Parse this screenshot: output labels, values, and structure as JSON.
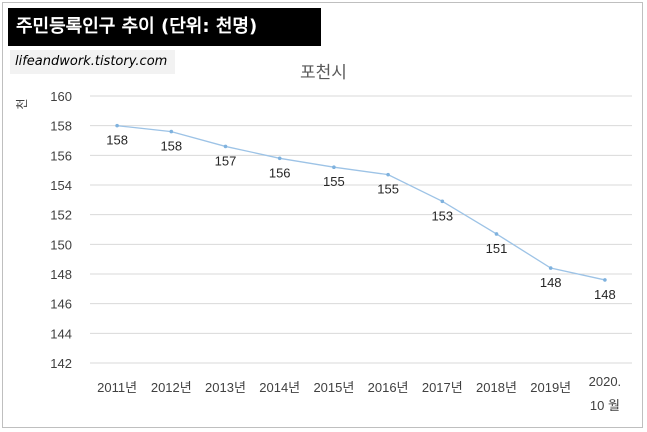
{
  "header": {
    "banner_title": "주민등록인구 추이 (단위: 천명)",
    "watermark": "lifeandwork.tistory.com"
  },
  "chart_data": {
    "type": "line",
    "title": "포천시",
    "ylabel": "천",
    "xlabel": "",
    "ylim": [
      142,
      160
    ],
    "yticks": [
      142,
      144,
      146,
      148,
      150,
      152,
      154,
      156,
      158,
      160
    ],
    "grid": true,
    "categories": [
      "2011년",
      "2012년",
      "2013년",
      "2014년",
      "2015년",
      "2016년",
      "2017년",
      "2018년",
      "2019년",
      "2020. 10 월"
    ],
    "series": [
      {
        "values": [
          158.0,
          157.6,
          156.6,
          155.8,
          155.2,
          154.7,
          152.9,
          150.7,
          148.4,
          147.6
        ],
        "data_labels": [
          "158",
          "158",
          "157",
          "156",
          "155",
          "155",
          "153",
          "151",
          "148",
          "148"
        ]
      }
    ],
    "line_color": "#9dc3e6"
  }
}
